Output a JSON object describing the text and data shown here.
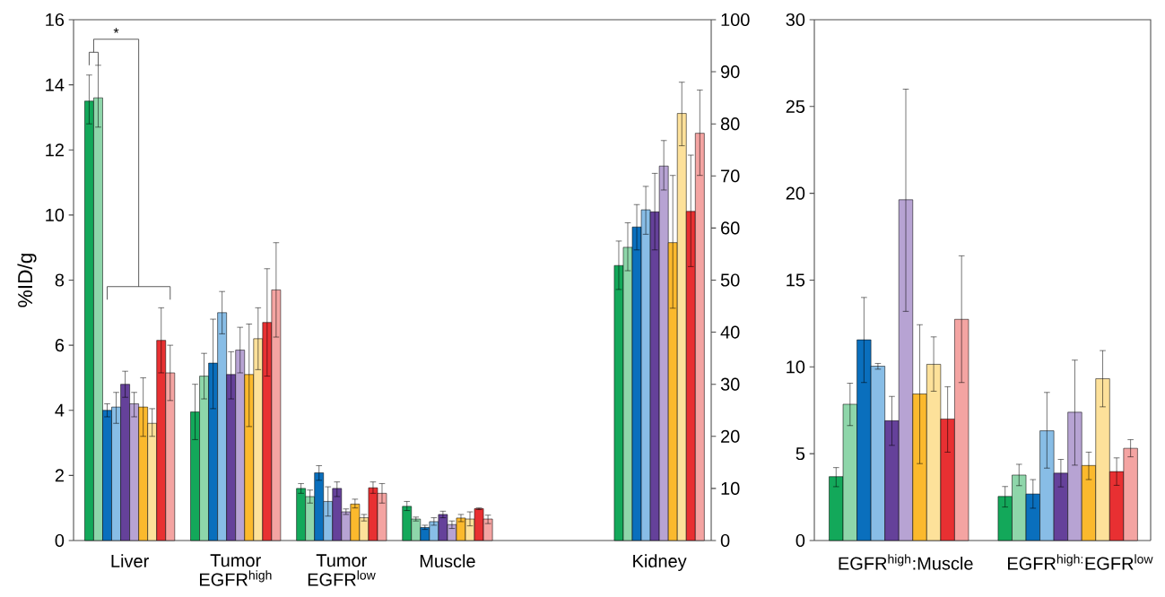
{
  "chart_data": [
    {
      "type": "bar",
      "ylabel": "%ID/g",
      "categories": [
        "Liver",
        "Tumor EGFR$^{high}$",
        "Tumor EGFR$^{low}$",
        "Muscle",
        null,
        "Kidney"
      ],
      "ylim": [
        0,
        16
      ],
      "yticks": [
        0,
        2,
        4,
        6,
        8,
        10,
        12,
        14,
        16
      ],
      "y2lim": [
        0,
        100
      ],
      "y2ticks": [
        0,
        10,
        20,
        30,
        40,
        50,
        60,
        70,
        80,
        90,
        100
      ],
      "annotations": [
        "*"
      ],
      "series": [
        {
          "color": "#13a85a",
          "values": [
            13.5,
            3.95,
            1.6,
            1.05,
            null,
            null
          ],
          "errors": [
            [
              12.8,
              14.3
            ],
            [
              3.1,
              4.8
            ],
            [
              1.45,
              1.75
            ],
            [
              0.92,
              1.2
            ],
            null,
            null
          ]
        },
        {
          "color": "#8ed6aa",
          "values": [
            13.6,
            5.05,
            1.35,
            0.66,
            null,
            null
          ],
          "errors": [
            [
              12.7,
              14.6
            ],
            [
              4.35,
              5.75
            ],
            [
              1.15,
              1.55
            ],
            [
              0.6,
              0.72
            ],
            null,
            null
          ]
        },
        {
          "color": "#0a6fbd",
          "values": [
            4.0,
            5.45,
            2.08,
            0.4,
            null,
            null
          ],
          "errors": [
            [
              3.8,
              4.2
            ],
            [
              4.05,
              6.8
            ],
            [
              1.85,
              2.3
            ],
            [
              0.34,
              0.47
            ],
            null,
            null
          ]
        },
        {
          "color": "#88bde6",
          "values": [
            4.1,
            7.0,
            1.2,
            0.58,
            null,
            null
          ],
          "errors": [
            [
              3.6,
              4.55
            ],
            [
              6.35,
              7.65
            ],
            [
              0.75,
              1.65
            ],
            [
              0.47,
              0.7
            ],
            null,
            null
          ]
        },
        {
          "color": "#65419a",
          "values": [
            4.8,
            5.1,
            1.6,
            0.8,
            null,
            null
          ],
          "errors": [
            [
              4.4,
              5.2
            ],
            [
              4.35,
              5.8
            ],
            [
              1.35,
              1.8
            ],
            [
              0.7,
              0.9
            ],
            null,
            null
          ]
        },
        {
          "color": "#b7a3d3",
          "values": [
            4.2,
            5.85,
            0.88,
            0.49,
            null,
            null
          ],
          "errors": [
            [
              3.8,
              4.55
            ],
            [
              5.15,
              6.55
            ],
            [
              0.8,
              0.97
            ],
            [
              0.37,
              0.6
            ],
            null,
            null
          ]
        },
        {
          "color": "#fbb92d",
          "values": [
            4.1,
            5.1,
            1.12,
            0.69,
            null,
            null
          ],
          "errors": [
            [
              3.2,
              5.0
            ],
            [
              3.5,
              6.65
            ],
            [
              1.0,
              1.27
            ],
            [
              0.58,
              0.8
            ],
            null,
            null
          ]
        },
        {
          "color": "#fde19a",
          "values": [
            3.6,
            6.2,
            0.7,
            0.66,
            null,
            null
          ],
          "errors": [
            [
              3.2,
              4.05
            ],
            [
              5.25,
              7.15
            ],
            [
              0.6,
              0.8
            ],
            [
              0.45,
              0.88
            ],
            null,
            null
          ]
        },
        {
          "color": "#e83032",
          "values": [
            6.15,
            6.7,
            1.62,
            0.98,
            null,
            null
          ],
          "errors": [
            [
              5.15,
              7.15
            ],
            [
              5.05,
              8.35
            ],
            [
              1.45,
              1.8
            ],
            [
              0.95,
              1.0
            ],
            null,
            null
          ]
        },
        {
          "color": "#f4a4a2",
          "values": [
            5.15,
            7.7,
            1.45,
            0.66,
            null,
            null
          ],
          "errors": [
            [
              4.3,
              6.0
            ],
            [
              6.25,
              9.15
            ],
            [
              1.15,
              1.75
            ],
            [
              0.52,
              0.78
            ],
            null,
            null
          ]
        },
        {
          "axis": "y2",
          "color": "#13a85a",
          "values": [
            null,
            null,
            null,
            null,
            null,
            52.8
          ],
          "errors": [
            null,
            null,
            null,
            null,
            null,
            [
              48.2,
              57.5
            ]
          ]
        },
        {
          "axis": "y2",
          "color": "#8ed6aa",
          "values": [
            null,
            null,
            null,
            null,
            null,
            56.3
          ],
          "errors": [
            null,
            null,
            null,
            null,
            null,
            [
              51.8,
              61
            ]
          ]
        },
        {
          "axis": "y2",
          "color": "#0a6fbd",
          "values": [
            null,
            null,
            null,
            null,
            null,
            60.2
          ],
          "errors": [
            null,
            null,
            null,
            null,
            null,
            [
              55.8,
              64.5
            ]
          ]
        },
        {
          "axis": "y2",
          "color": "#88bde6",
          "values": [
            null,
            null,
            null,
            null,
            null,
            63.5
          ],
          "errors": [
            null,
            null,
            null,
            null,
            null,
            [
              58.8,
              68
            ]
          ]
        },
        {
          "axis": "y2",
          "color": "#65419a",
          "values": [
            null,
            null,
            null,
            null,
            null,
            63.1
          ],
          "errors": [
            null,
            null,
            null,
            null,
            null,
            [
              55.8,
              70.5
            ]
          ]
        },
        {
          "axis": "y2",
          "color": "#b7a3d3",
          "values": [
            null,
            null,
            null,
            null,
            null,
            71.9
          ],
          "errors": [
            null,
            null,
            null,
            null,
            null,
            [
              67.3,
              76.8
            ]
          ]
        },
        {
          "axis": "y2",
          "color": "#fbb92d",
          "values": [
            null,
            null,
            null,
            null,
            null,
            57.2
          ],
          "errors": [
            null,
            null,
            null,
            null,
            null,
            [
              44.6,
              70.1
            ]
          ]
        },
        {
          "axis": "y2",
          "color": "#fde19a",
          "values": [
            null,
            null,
            null,
            null,
            null,
            82
          ],
          "errors": [
            null,
            null,
            null,
            null,
            null,
            [
              75.8,
              88
            ]
          ]
        },
        {
          "axis": "y2",
          "color": "#e83032",
          "values": [
            null,
            null,
            null,
            null,
            null,
            63.2
          ],
          "errors": [
            null,
            null,
            null,
            null,
            null,
            [
              52.6,
              74
            ]
          ]
        },
        {
          "axis": "y2",
          "color": "#f4a4a2",
          "values": [
            null,
            null,
            null,
            null,
            null,
            78.2
          ],
          "errors": [
            null,
            null,
            null,
            null,
            null,
            [
              70.1,
              86.5
            ]
          ]
        }
      ]
    },
    {
      "type": "bar",
      "categories": [
        "EGFR$^{high}$:Muscle",
        "EGFR$^{high:}$EGFR$^{low}$"
      ],
      "ylim": [
        0,
        30
      ],
      "yticks": [
        0,
        5,
        10,
        15,
        20,
        25,
        30
      ],
      "series": [
        {
          "color": "#13a85a",
          "values": [
            3.68,
            2.54
          ],
          "errors": [
            [
              3.1,
              4.2
            ],
            [
              1.93,
              3.11
            ]
          ]
        },
        {
          "color": "#8ed6aa",
          "values": [
            7.85,
            3.77
          ],
          "errors": [
            [
              6.62,
              9.06
            ],
            [
              3.16,
              4.39
            ]
          ]
        },
        {
          "color": "#0a6fbd",
          "values": [
            11.56,
            2.68
          ],
          "errors": [
            [
              9.1,
              14.0
            ],
            [
              1.86,
              3.51
            ]
          ]
        },
        {
          "color": "#88bde6",
          "values": [
            10.04,
            6.32
          ],
          "errors": [
            [
              9.87,
              10.2
            ],
            [
              4.17,
              8.53
            ]
          ]
        },
        {
          "color": "#65419a",
          "values": [
            6.9,
            3.88
          ],
          "errors": [
            [
              5.48,
              8.3
            ],
            [
              3.09,
              4.67
            ]
          ]
        },
        {
          "color": "#b7a3d3",
          "values": [
            19.63,
            7.39
          ],
          "errors": [
            [
              13.2,
              26.0
            ],
            [
              4.34,
              10.39
            ]
          ]
        },
        {
          "color": "#fbb92d",
          "values": [
            8.44,
            4.32
          ],
          "errors": [
            [
              4.43,
              12.43
            ],
            [
              3.51,
              5.09
            ]
          ]
        },
        {
          "color": "#fde19a",
          "values": [
            10.15,
            9.32
          ],
          "errors": [
            [
              8.6,
              11.73
            ],
            [
              7.7,
              10.94
            ]
          ]
        },
        {
          "color": "#e83032",
          "values": [
            7.0,
            3.97
          ],
          "errors": [
            [
              5.09,
              8.86
            ],
            [
              3.18,
              4.76
            ]
          ]
        },
        {
          "color": "#f4a4a2",
          "values": [
            12.74,
            5.31
          ],
          "errors": [
            [
              9.1,
              16.4
            ],
            [
              4.82,
              5.81
            ]
          ]
        }
      ]
    }
  ]
}
